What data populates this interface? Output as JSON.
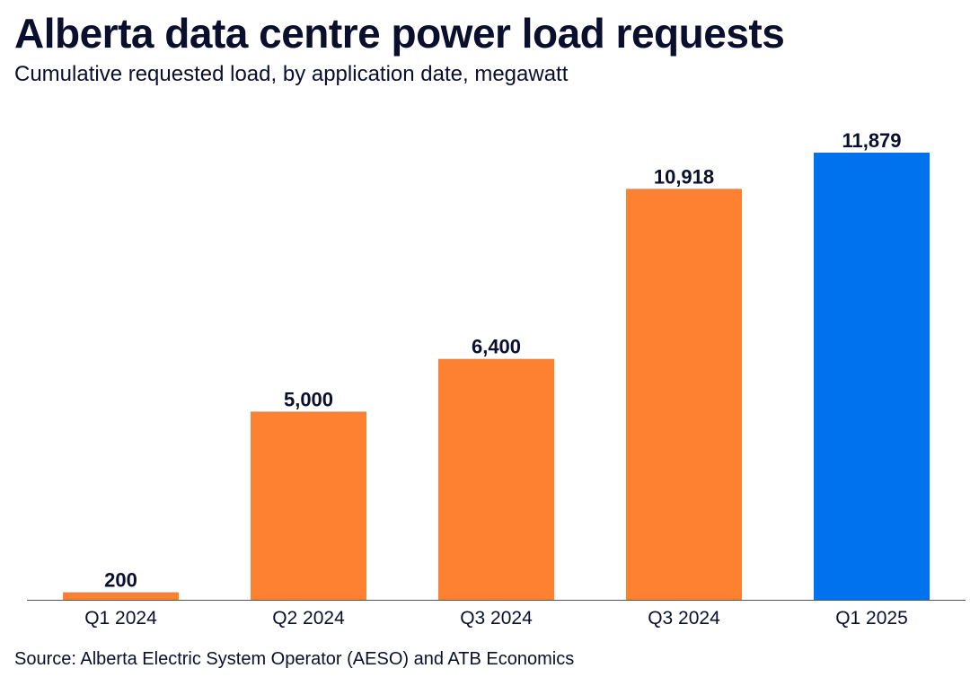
{
  "title": "Alberta data centre power load requests",
  "subtitle": "Cumulative requested load, by application date, megawatt",
  "source": "Source: Alberta Electric System Operator (AESO) and ATB Economics",
  "colors": {
    "orange": "#fd8131",
    "blue": "#0172ee",
    "axis": "#555555",
    "text": "#0b0f2e"
  },
  "chart_data": {
    "type": "bar",
    "title": "Alberta data centre power load requests",
    "subtitle": "Cumulative requested load, by application date, megawatt",
    "categories": [
      "Q1 2024",
      "Q2 2024",
      "Q3 2024",
      "Q3 2024",
      "Q1 2025"
    ],
    "values": [
      200,
      5000,
      6400,
      10918,
      11879
    ],
    "value_labels": [
      "200",
      "5,000",
      "6,400",
      "10,918",
      "11,879"
    ],
    "bar_colors": [
      "#fd8131",
      "#fd8131",
      "#fd8131",
      "#fd8131",
      "#0172ee"
    ],
    "ylim": [
      0,
      11879
    ],
    "grid": false,
    "legend": "none"
  }
}
